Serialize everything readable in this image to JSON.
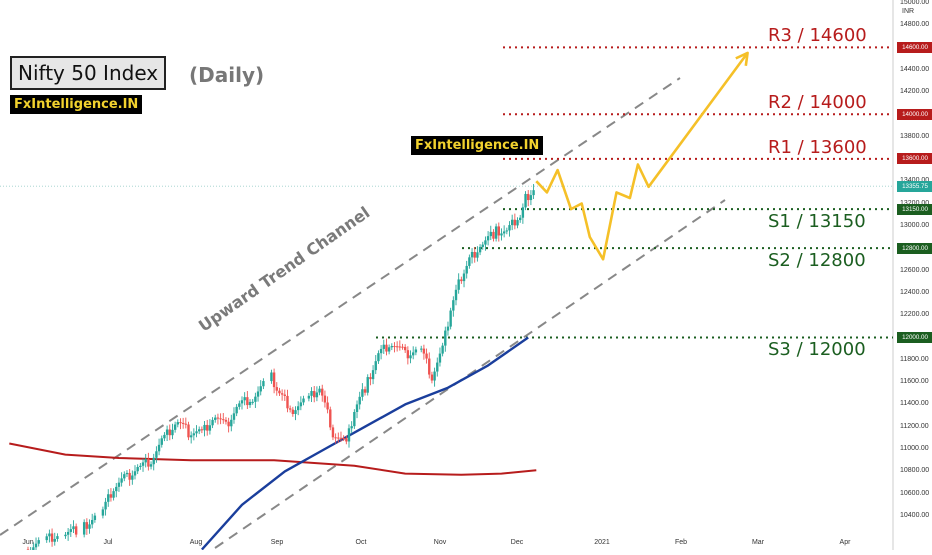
{
  "title": "Nifty 50 Index",
  "subtitle": "(Daily)",
  "brand": "FxIntelligence.IN",
  "currency": "INR",
  "channel_label": "Upward Trend Channel",
  "colors": {
    "resistance": "#b71c1c",
    "support": "#1b5e20",
    "bull_candle": "#26a69a",
    "bear_candle": "#ef5350",
    "ma_blue": "#1a3e9c",
    "ma_red": "#b71c1c",
    "projection": "#f5c028",
    "channel": "#888888"
  },
  "chart_data": {
    "type": "candlestick",
    "title": "Nifty 50 Index",
    "subtitle": "(Daily)",
    "x_ticks": [
      "Jun",
      "Jul",
      "Aug",
      "Sep",
      "Oct",
      "Nov",
      "Dec",
      "2021",
      "Feb",
      "Mar",
      "Apr"
    ],
    "y_ticks": [
      10400,
      10600,
      10800,
      11000,
      11200,
      11400,
      11600,
      11800,
      12000,
      12200,
      12400,
      12600,
      12800,
      13000,
      13200,
      13400,
      13600,
      13800,
      14000,
      14200,
      14400,
      14600,
      14800,
      15000
    ],
    "ylim": [
      10300,
      15000
    ],
    "last_price": 13355.75,
    "levels": [
      {
        "label": "R3 / 14600",
        "value": 14600,
        "kind": "resistance",
        "tag": "14600.00"
      },
      {
        "label": "R2 / 14000",
        "value": 14000,
        "kind": "resistance",
        "tag": "14000.00"
      },
      {
        "label": "R1 / 13600",
        "value": 13600,
        "kind": "resistance",
        "tag": "13600.00"
      },
      {
        "label": "S1 / 13150",
        "value": 13150,
        "kind": "support",
        "tag": "13150.00"
      },
      {
        "label": "S2 / 12800",
        "value": 12800,
        "kind": "support",
        "tag": "12800.00"
      },
      {
        "label": "S3 / 12000",
        "value": 12000,
        "kind": "support",
        "tag": "12000.00"
      }
    ],
    "last_price_tag": "13355.75",
    "closes": [
      [
        "2020-06-01",
        10100
      ],
      [
        "2020-06-08",
        10200
      ],
      [
        "2020-06-15",
        10250
      ],
      [
        "2020-06-22",
        10300
      ],
      [
        "2020-06-29",
        10450
      ],
      [
        "2020-07-03",
        10650
      ],
      [
        "2020-07-08",
        10750
      ],
      [
        "2020-07-13",
        10850
      ],
      [
        "2020-07-17",
        10900
      ],
      [
        "2020-07-22",
        11100
      ],
      [
        "2020-07-27",
        11250
      ],
      [
        "2020-07-31",
        11150
      ],
      [
        "2020-08-05",
        11150
      ],
      [
        "2020-08-10",
        11300
      ],
      [
        "2020-08-14",
        11200
      ],
      [
        "2020-08-19",
        11400
      ],
      [
        "2020-08-24",
        11450
      ],
      [
        "2020-08-31",
        11650
      ],
      [
        "2020-09-03",
        11500
      ],
      [
        "2020-09-08",
        11350
      ],
      [
        "2020-09-14",
        11450
      ],
      [
        "2020-09-18",
        11550
      ],
      [
        "2020-09-23",
        11150
      ],
      [
        "2020-09-28",
        11050
      ],
      [
        "2020-10-01",
        11350
      ],
      [
        "2020-10-06",
        11600
      ],
      [
        "2020-10-10",
        11850
      ],
      [
        "2020-10-15",
        11950
      ],
      [
        "2020-10-20",
        11850
      ],
      [
        "2020-10-26",
        11900
      ],
      [
        "2020-10-30",
        11650
      ],
      [
        "2020-11-03",
        11900
      ],
      [
        "2020-11-06",
        12250
      ],
      [
        "2020-11-10",
        12550
      ],
      [
        "2020-11-13",
        12700
      ],
      [
        "2020-11-18",
        12850
      ],
      [
        "2020-11-23",
        12950
      ],
      [
        "2020-11-27",
        12950
      ],
      [
        "2020-12-02",
        13100
      ],
      [
        "2020-12-04",
        13250
      ],
      [
        "2020-12-08",
        13355
      ]
    ],
    "ma_blue": [
      [
        "2020-08-05",
        10100
      ],
      [
        "2020-08-20",
        10500
      ],
      [
        "2020-09-05",
        10800
      ],
      [
        "2020-09-20",
        11000
      ],
      [
        "2020-10-05",
        11200
      ],
      [
        "2020-10-20",
        11400
      ],
      [
        "2020-11-05",
        11550
      ],
      [
        "2020-11-20",
        11750
      ],
      [
        "2020-12-05",
        12000
      ]
    ],
    "ma_red": [
      [
        "2020-05-25",
        11050
      ],
      [
        "2020-06-15",
        10950
      ],
      [
        "2020-07-05",
        10920
      ],
      [
        "2020-08-01",
        10900
      ],
      [
        "2020-09-01",
        10900
      ],
      [
        "2020-10-01",
        10850
      ],
      [
        "2020-10-20",
        10780
      ],
      [
        "2020-11-10",
        10770
      ],
      [
        "2020-11-25",
        10780
      ],
      [
        "2020-12-08",
        10810
      ]
    ],
    "projection": [
      [
        "2020-12-08",
        13400
      ],
      [
        "2020-12-12",
        13300
      ],
      [
        "2020-12-16",
        13500
      ],
      [
        "2020-12-21",
        13150
      ],
      [
        "2020-12-25",
        13200
      ],
      [
        "2020-12-28",
        12900
      ],
      [
        "2021-01-02",
        12700
      ],
      [
        "2021-01-07",
        13300
      ],
      [
        "2021-01-12",
        13250
      ],
      [
        "2021-01-15",
        13550
      ],
      [
        "2021-01-19",
        13350
      ],
      [
        "2021-02-25",
        14550
      ]
    ]
  }
}
